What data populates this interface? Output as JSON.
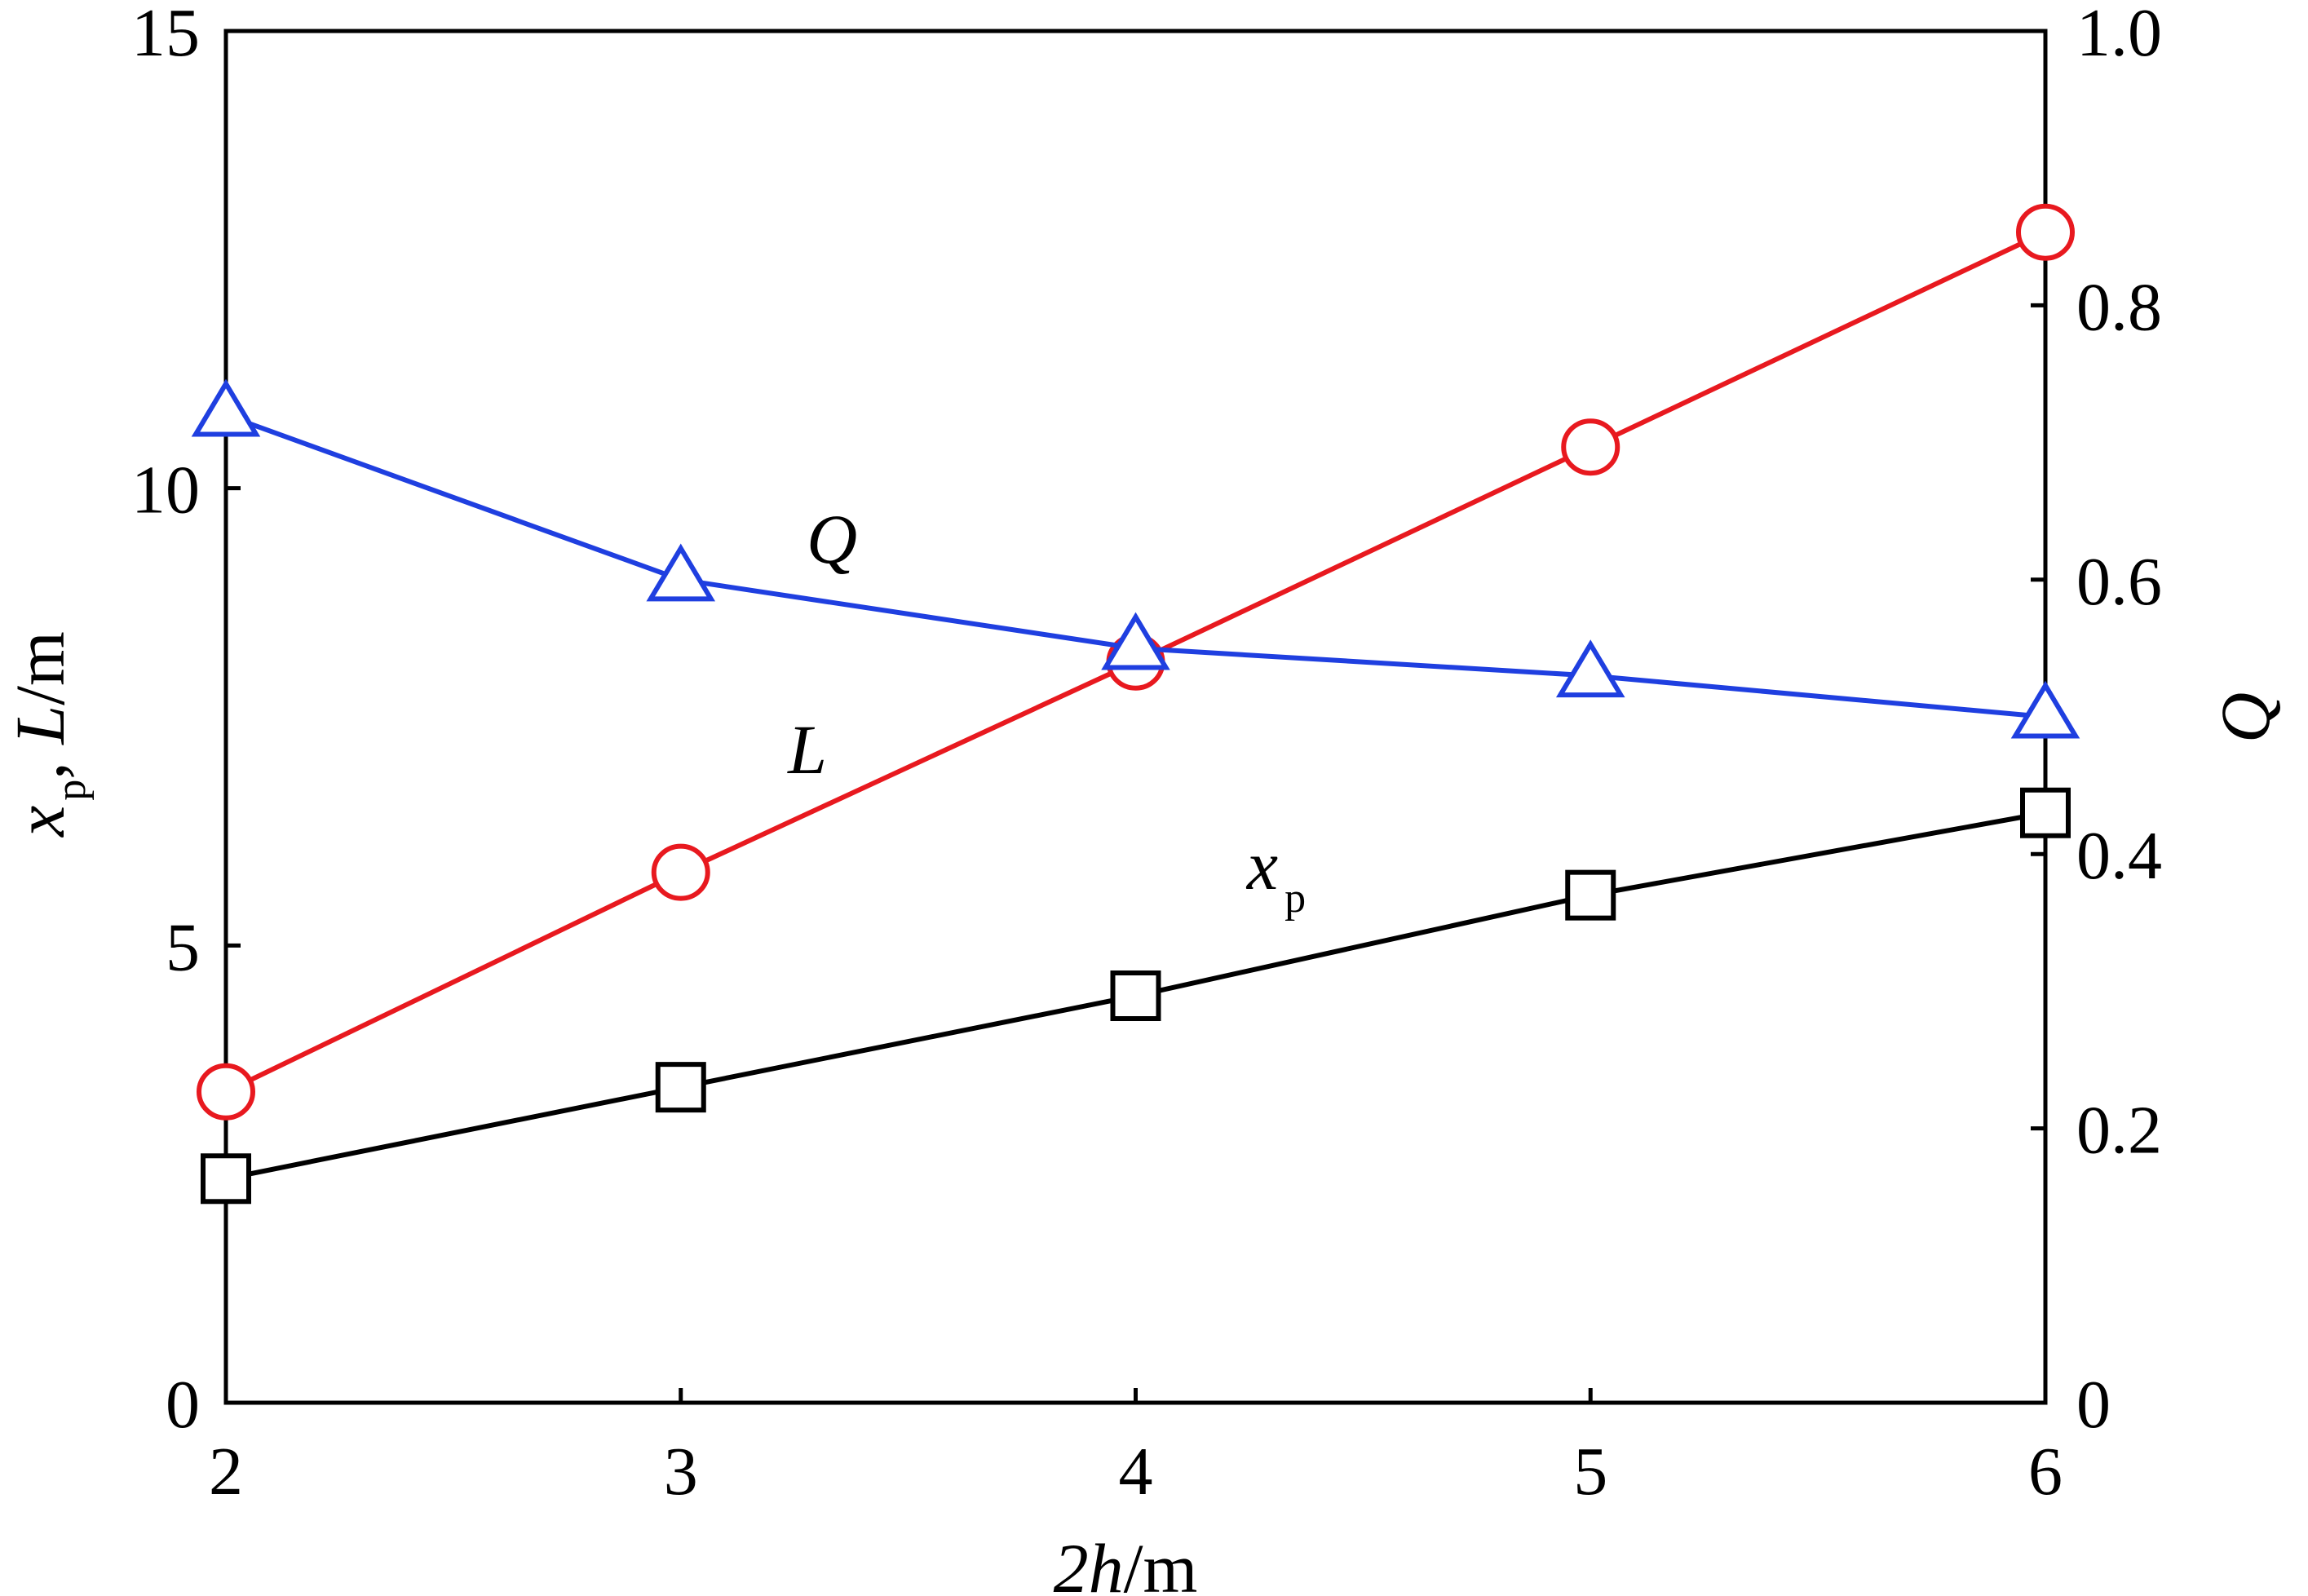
{
  "chart_data": {
    "type": "line",
    "x": [
      2,
      3,
      4,
      5,
      6
    ],
    "xlim": [
      2,
      6
    ],
    "xticks": [
      2,
      3,
      4,
      5,
      6
    ],
    "xtick_labels": [
      "2",
      "3",
      "4",
      "5",
      "6"
    ],
    "ylim_left": [
      0,
      15
    ],
    "yticks_left": [
      0,
      5,
      10,
      15
    ],
    "ytick_labels_left": [
      "0",
      "5",
      "10",
      "15"
    ],
    "ylim_right": [
      0,
      1.0
    ],
    "yticks_right": [
      0,
      0.2,
      0.4,
      0.6,
      0.8,
      1.0
    ],
    "ytick_labels_right": [
      "0",
      "0.2",
      "0.4",
      "0.6",
      "0.8",
      "1.0"
    ],
    "xlabel": {
      "italic": "2h",
      "rest": "/m"
    },
    "ylabel_left": {
      "x": "x",
      "x_sub": "p",
      "sep": ", ",
      "L": "L",
      "unit": "/m"
    },
    "ylabel_right": "Q",
    "grid": false,
    "legend": "none",
    "series": [
      {
        "name": "L",
        "axis": "left",
        "marker": "circle",
        "color": "#e8191f",
        "values": [
          3.4,
          5.8,
          8.1,
          10.45,
          12.8
        ]
      },
      {
        "name": "x",
        "name_sub": "p",
        "axis": "left",
        "marker": "square",
        "color": "#000000",
        "values": [
          2.45,
          3.45,
          4.45,
          5.55,
          6.45
        ]
      },
      {
        "name": "Q",
        "axis": "right",
        "marker": "triangle",
        "color": "#1f3fe0",
        "values": [
          0.72,
          0.6,
          0.55,
          0.53,
          0.5
        ]
      }
    ],
    "annotations": [
      {
        "text": "Q",
        "series": "Q"
      },
      {
        "text": "L",
        "series": "L"
      },
      {
        "text": "x",
        "sub": "p",
        "series": "x"
      }
    ]
  }
}
